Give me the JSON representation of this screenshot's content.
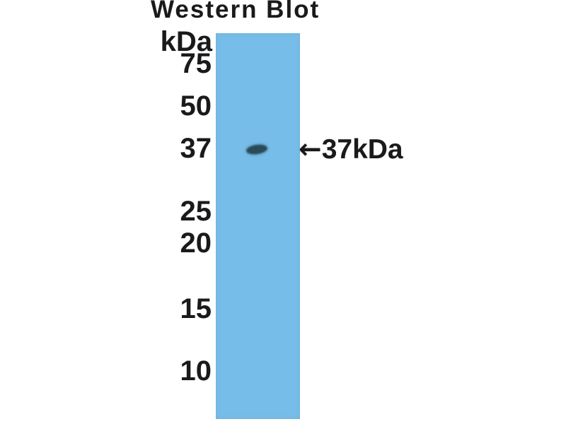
{
  "figure": {
    "title": "Western Blot",
    "unit_label": "kDa",
    "markers": [
      {
        "label": "75"
      },
      {
        "label": "50"
      },
      {
        "label": "37"
      },
      {
        "label": "25"
      },
      {
        "label": "20"
      },
      {
        "label": "15"
      },
      {
        "label": "10"
      }
    ],
    "band": {
      "molecular_weight_kda": 37,
      "lane_position": "single lane, band at 37 kDa"
    },
    "band_annotation": {
      "arrow": "←",
      "label": "37kDa"
    },
    "colors": {
      "background": "#ffffff",
      "lane": "#77bde9",
      "band": "#2b4a58",
      "text": "#1a1a1a"
    }
  }
}
